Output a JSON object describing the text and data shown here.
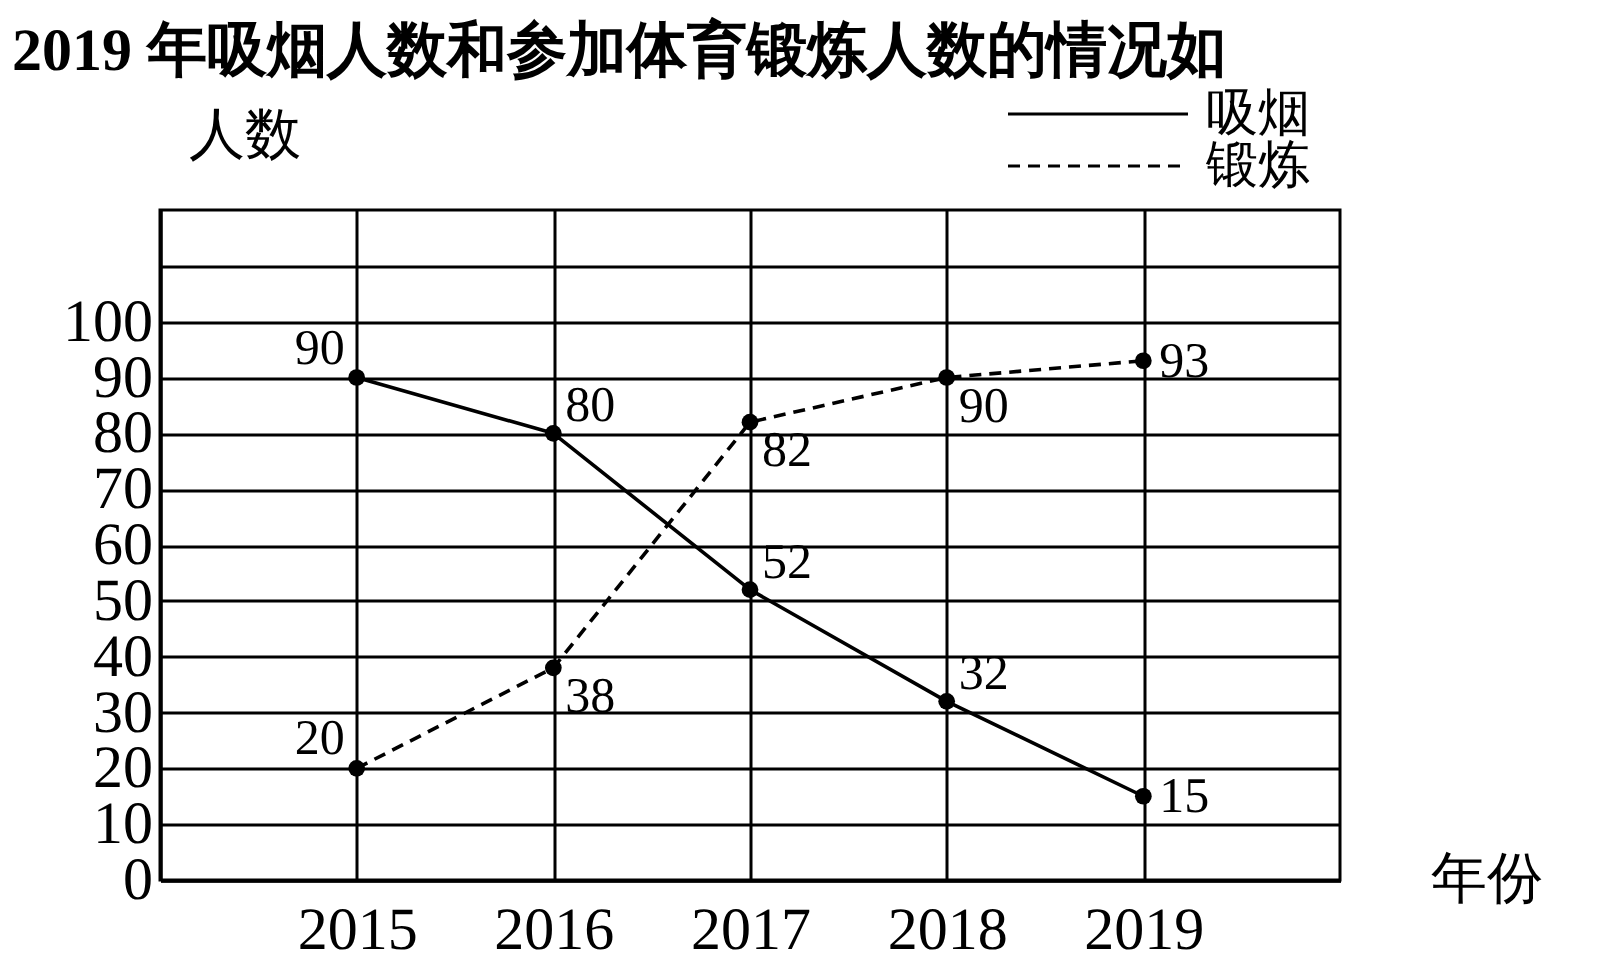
{
  "chart_data": {
    "type": "line",
    "title": "2019 年吸烟人数和参加体育锻炼人数的情况如",
    "xlabel": "年份",
    "ylabel": "人数",
    "x": [
      2015,
      2016,
      2017,
      2018,
      2019
    ],
    "series": [
      {
        "name": "吸烟",
        "color": "#000000",
        "line_style": "solid",
        "values": [
          90,
          80,
          52,
          32,
          15
        ]
      },
      {
        "name": "锻炼",
        "color": "#000000",
        "line_style": "dashed",
        "values": [
          20,
          38,
          82,
          90,
          93
        ]
      }
    ],
    "xlim": [
      2014,
      2020
    ],
    "xticks": [
      2015,
      2016,
      2017,
      2018,
      2019
    ],
    "ylim": [
      0,
      120
    ],
    "yticks": [
      0,
      10,
      20,
      30,
      40,
      50,
      60,
      70,
      80,
      90,
      100,
      {
        "value": 110,
        "label": null
      }
    ],
    "grid": true,
    "legend": "top right",
    "marker": "circle",
    "data_labels": true
  }
}
